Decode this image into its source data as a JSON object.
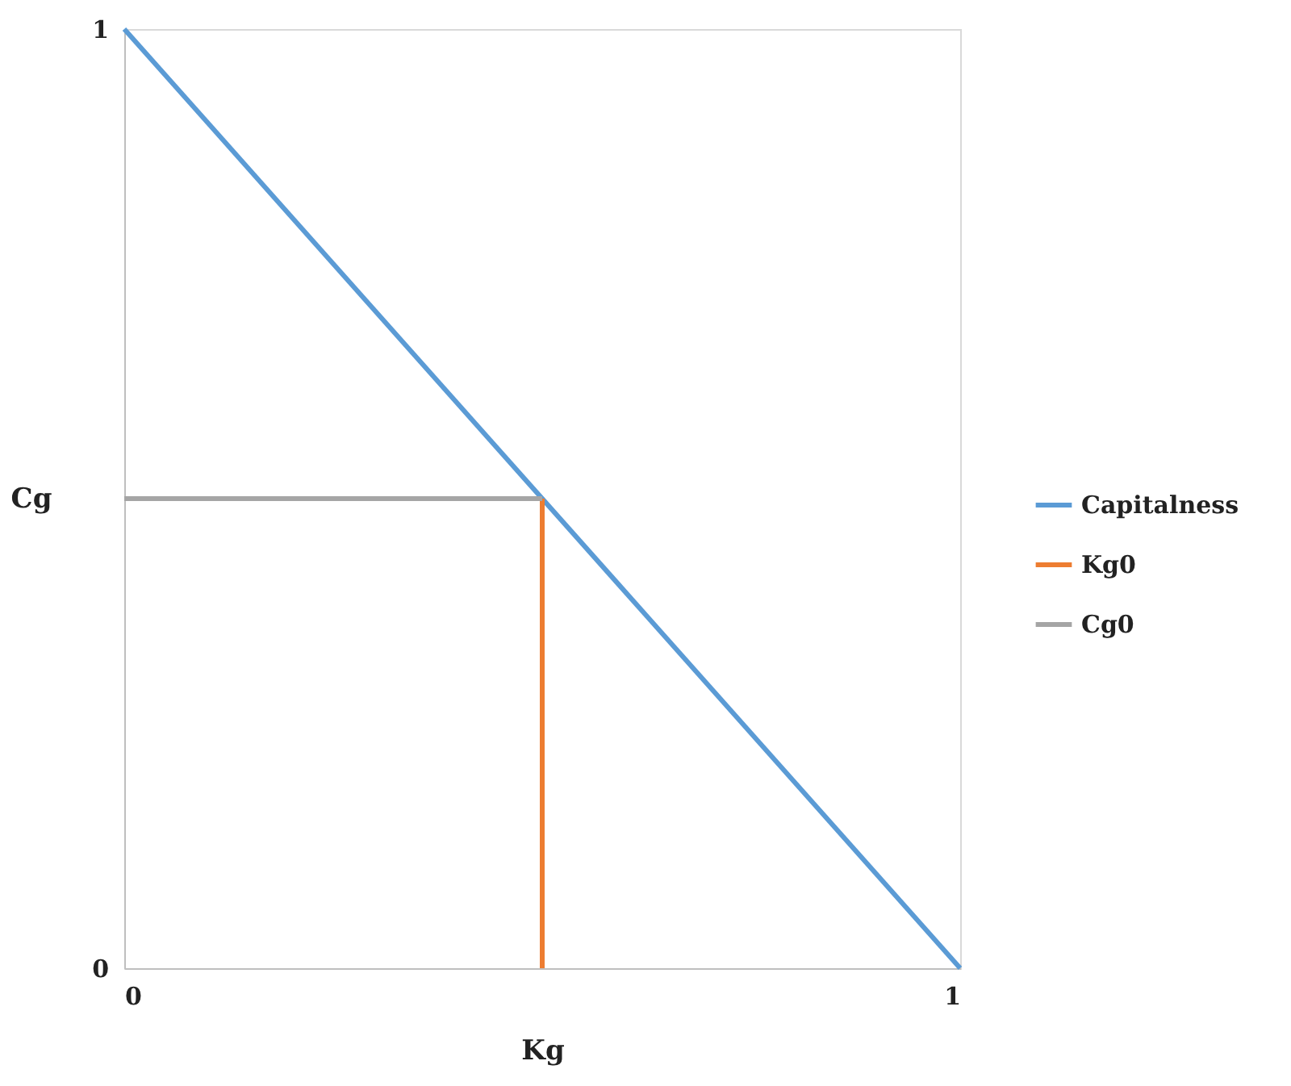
{
  "chart_data": {
    "type": "line",
    "xlabel": "Kg",
    "ylabel": "Cg",
    "xlim": [
      0,
      1
    ],
    "ylim": [
      0,
      1
    ],
    "xticks": [
      0,
      1
    ],
    "yticks": [
      0,
      1
    ],
    "legend": "right",
    "marker": "none",
    "line_style": "solid",
    "series": [
      {
        "name": "Capitalness",
        "color": "#5b9bd5",
        "x": [
          0,
          1
        ],
        "values": [
          1,
          0
        ]
      },
      {
        "name": "Kg0",
        "color": "#ed7d31",
        "x": [
          0.5,
          0.5
        ],
        "values": [
          0,
          0.5
        ]
      },
      {
        "name": "Cg0",
        "color": "#a5a5a5",
        "x": [
          0,
          0.5
        ],
        "values": [
          0.5,
          0.5
        ]
      }
    ]
  }
}
